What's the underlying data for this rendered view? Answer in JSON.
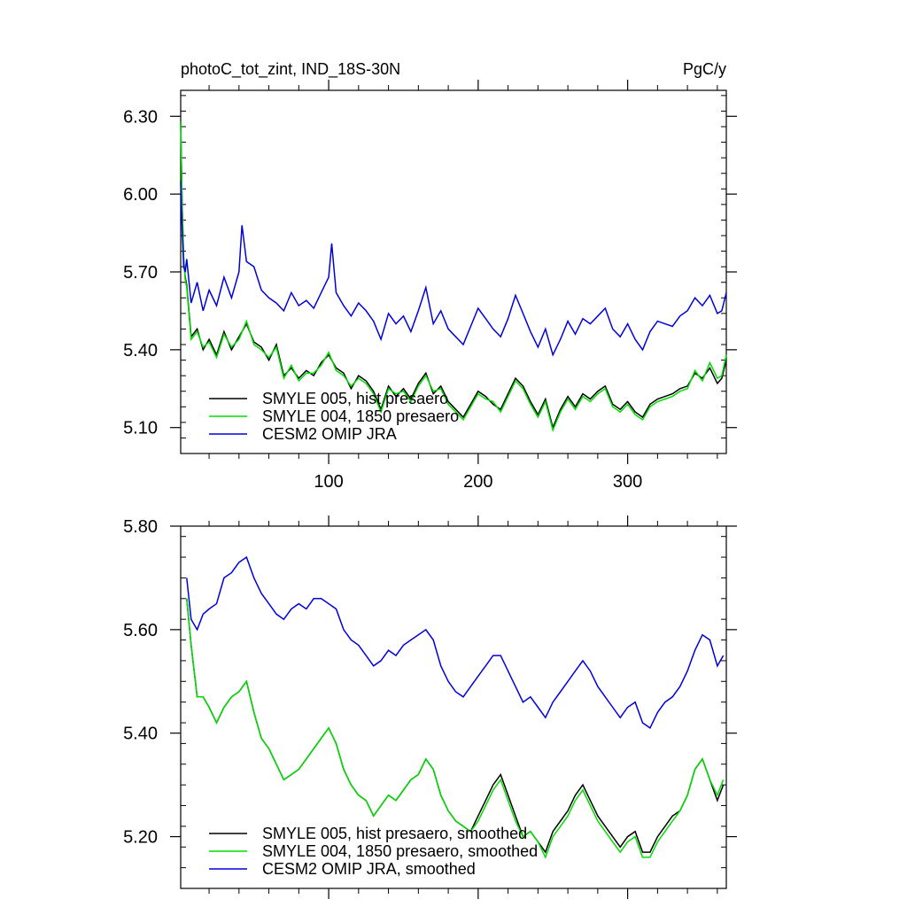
{
  "chart_data": [
    {
      "type": "line",
      "title_left": "photoC_tot_zint, IND_18S-30N",
      "title_right": "PgC/y",
      "xlim": [
        1,
        366
      ],
      "ylim": [
        5.0,
        6.4
      ],
      "yticks": [
        5.1,
        5.4,
        5.7,
        6.0,
        6.3
      ],
      "yticklabels": [
        "5.10",
        "5.40",
        "5.70",
        "6.00",
        "6.30"
      ],
      "xticks": [
        100,
        200,
        300
      ],
      "xticklabels": [
        "100",
        "200",
        "300"
      ],
      "legend_position": "bottom-left",
      "series": [
        {
          "name": "SMYLE 005, hist presaero",
          "color": "#000000",
          "x": [
            1,
            2,
            3,
            4,
            5,
            8,
            12,
            16,
            20,
            25,
            30,
            35,
            40,
            45,
            50,
            55,
            60,
            65,
            70,
            75,
            80,
            85,
            90,
            95,
            100,
            105,
            110,
            115,
            120,
            125,
            130,
            135,
            140,
            145,
            150,
            155,
            160,
            165,
            170,
            175,
            180,
            185,
            190,
            195,
            200,
            205,
            210,
            215,
            220,
            225,
            230,
            235,
            240,
            245,
            250,
            255,
            260,
            265,
            270,
            275,
            280,
            285,
            290,
            295,
            300,
            305,
            310,
            315,
            320,
            325,
            330,
            335,
            340,
            345,
            350,
            355,
            360,
            363,
            366
          ],
          "values": [
            6.28,
            5.95,
            5.75,
            5.68,
            5.65,
            5.45,
            5.48,
            5.4,
            5.44,
            5.38,
            5.47,
            5.4,
            5.45,
            5.5,
            5.43,
            5.41,
            5.36,
            5.42,
            5.3,
            5.33,
            5.29,
            5.32,
            5.3,
            5.35,
            5.38,
            5.33,
            5.31,
            5.25,
            5.3,
            5.28,
            5.24,
            5.17,
            5.26,
            5.22,
            5.25,
            5.21,
            5.27,
            5.31,
            5.23,
            5.26,
            5.2,
            5.17,
            5.14,
            5.19,
            5.24,
            5.22,
            5.19,
            5.17,
            5.23,
            5.29,
            5.26,
            5.2,
            5.15,
            5.21,
            5.1,
            5.17,
            5.22,
            5.18,
            5.23,
            5.21,
            5.24,
            5.26,
            5.19,
            5.17,
            5.2,
            5.16,
            5.14,
            5.19,
            5.21,
            5.22,
            5.23,
            5.25,
            5.26,
            5.31,
            5.29,
            5.33,
            5.27,
            5.29,
            5.36
          ]
        },
        {
          "name": "SMYLE 004, 1850 presaero",
          "color": "#00dd00",
          "x": [
            1,
            2,
            3,
            4,
            5,
            8,
            12,
            16,
            20,
            25,
            30,
            35,
            40,
            45,
            50,
            55,
            60,
            65,
            70,
            75,
            80,
            85,
            90,
            95,
            100,
            105,
            110,
            115,
            120,
            125,
            130,
            135,
            140,
            145,
            150,
            155,
            160,
            165,
            170,
            175,
            180,
            185,
            190,
            195,
            200,
            205,
            210,
            215,
            220,
            225,
            230,
            235,
            240,
            245,
            250,
            255,
            260,
            265,
            270,
            275,
            280,
            285,
            290,
            295,
            300,
            305,
            310,
            315,
            320,
            325,
            330,
            335,
            340,
            345,
            350,
            355,
            360,
            363,
            366
          ],
          "values": [
            6.28,
            5.95,
            5.75,
            5.67,
            5.64,
            5.44,
            5.47,
            5.41,
            5.43,
            5.37,
            5.46,
            5.41,
            5.44,
            5.51,
            5.42,
            5.4,
            5.37,
            5.41,
            5.29,
            5.34,
            5.28,
            5.31,
            5.31,
            5.34,
            5.39,
            5.32,
            5.3,
            5.26,
            5.29,
            5.27,
            5.23,
            5.16,
            5.25,
            5.23,
            5.24,
            5.2,
            5.26,
            5.3,
            5.24,
            5.25,
            5.19,
            5.16,
            5.13,
            5.18,
            5.23,
            5.21,
            5.2,
            5.16,
            5.22,
            5.28,
            5.25,
            5.19,
            5.14,
            5.2,
            5.09,
            5.16,
            5.21,
            5.17,
            5.22,
            5.2,
            5.23,
            5.25,
            5.18,
            5.16,
            5.19,
            5.15,
            5.13,
            5.18,
            5.2,
            5.21,
            5.22,
            5.24,
            5.25,
            5.32,
            5.28,
            5.35,
            5.29,
            5.3,
            5.38
          ]
        },
        {
          "name": "CESM2 OMIP JRA",
          "color": "#0000dd",
          "x": [
            1,
            2,
            3,
            4,
            5,
            8,
            12,
            16,
            20,
            25,
            30,
            35,
            40,
            42,
            45,
            50,
            55,
            60,
            65,
            70,
            75,
            80,
            85,
            90,
            95,
            100,
            102,
            105,
            110,
            115,
            120,
            125,
            130,
            135,
            140,
            145,
            150,
            155,
            160,
            165,
            170,
            175,
            180,
            185,
            190,
            195,
            200,
            205,
            210,
            215,
            220,
            225,
            230,
            235,
            240,
            245,
            250,
            255,
            260,
            265,
            270,
            275,
            280,
            285,
            290,
            295,
            300,
            305,
            310,
            315,
            320,
            325,
            330,
            335,
            340,
            345,
            350,
            355,
            360,
            363,
            366
          ],
          "values": [
            6.05,
            5.85,
            5.72,
            5.7,
            5.75,
            5.58,
            5.66,
            5.55,
            5.63,
            5.57,
            5.68,
            5.6,
            5.7,
            5.88,
            5.74,
            5.72,
            5.63,
            5.6,
            5.58,
            5.55,
            5.62,
            5.57,
            5.59,
            5.56,
            5.62,
            5.68,
            5.81,
            5.62,
            5.57,
            5.53,
            5.58,
            5.55,
            5.51,
            5.44,
            5.54,
            5.5,
            5.53,
            5.47,
            5.55,
            5.64,
            5.5,
            5.55,
            5.48,
            5.45,
            5.42,
            5.49,
            5.56,
            5.52,
            5.48,
            5.45,
            5.52,
            5.61,
            5.54,
            5.47,
            5.41,
            5.48,
            5.38,
            5.44,
            5.51,
            5.46,
            5.52,
            5.5,
            5.53,
            5.56,
            5.48,
            5.45,
            5.5,
            5.44,
            5.4,
            5.47,
            5.51,
            5.5,
            5.49,
            5.53,
            5.55,
            5.6,
            5.57,
            5.61,
            5.54,
            5.55,
            5.62
          ]
        }
      ]
    },
    {
      "type": "line",
      "xlim": [
        1,
        366
      ],
      "ylim": [
        5.1,
        5.8
      ],
      "yticks": [
        5.2,
        5.4,
        5.6,
        5.8
      ],
      "yticklabels": [
        "5.20",
        "5.40",
        "5.60",
        "5.80"
      ],
      "xticks": [
        100,
        200,
        300
      ],
      "xticklabels": [],
      "legend_position": "bottom-left",
      "series": [
        {
          "name": "SMYLE 005, hist presaero, smoothed",
          "color": "#000000",
          "x": [
            5,
            8,
            12,
            16,
            20,
            25,
            30,
            35,
            40,
            45,
            50,
            55,
            60,
            65,
            70,
            75,
            80,
            85,
            90,
            95,
            100,
            105,
            110,
            115,
            120,
            125,
            130,
            135,
            140,
            145,
            150,
            155,
            160,
            165,
            170,
            175,
            180,
            185,
            190,
            195,
            200,
            205,
            210,
            215,
            220,
            225,
            230,
            235,
            240,
            245,
            250,
            255,
            260,
            265,
            270,
            275,
            280,
            285,
            290,
            295,
            300,
            305,
            310,
            315,
            320,
            325,
            330,
            335,
            340,
            345,
            350,
            355,
            360,
            364
          ],
          "values": [
            5.66,
            5.57,
            5.47,
            5.47,
            5.45,
            5.42,
            5.45,
            5.47,
            5.48,
            5.5,
            5.44,
            5.39,
            5.37,
            5.34,
            5.31,
            5.32,
            5.33,
            5.35,
            5.37,
            5.39,
            5.41,
            5.38,
            5.33,
            5.3,
            5.28,
            5.27,
            5.24,
            5.26,
            5.28,
            5.27,
            5.29,
            5.31,
            5.32,
            5.35,
            5.33,
            5.28,
            5.25,
            5.23,
            5.22,
            5.21,
            5.24,
            5.27,
            5.3,
            5.32,
            5.28,
            5.24,
            5.2,
            5.21,
            5.19,
            5.17,
            5.21,
            5.23,
            5.25,
            5.28,
            5.3,
            5.27,
            5.24,
            5.22,
            5.2,
            5.18,
            5.2,
            5.21,
            5.17,
            5.17,
            5.2,
            5.22,
            5.24,
            5.25,
            5.28,
            5.33,
            5.35,
            5.31,
            5.27,
            5.3
          ]
        },
        {
          "name": "SMYLE 004, 1850 presaero, smoothed",
          "color": "#00dd00",
          "x": [
            5,
            8,
            12,
            16,
            20,
            25,
            30,
            35,
            40,
            45,
            50,
            55,
            60,
            65,
            70,
            75,
            80,
            85,
            90,
            95,
            100,
            105,
            110,
            115,
            120,
            125,
            130,
            135,
            140,
            145,
            150,
            155,
            160,
            165,
            170,
            175,
            180,
            185,
            190,
            195,
            200,
            205,
            210,
            215,
            220,
            225,
            230,
            235,
            240,
            245,
            250,
            255,
            260,
            265,
            270,
            275,
            280,
            285,
            290,
            295,
            300,
            305,
            310,
            315,
            320,
            325,
            330,
            335,
            340,
            345,
            350,
            355,
            360,
            364
          ],
          "values": [
            5.66,
            5.57,
            5.47,
            5.47,
            5.45,
            5.42,
            5.45,
            5.47,
            5.48,
            5.5,
            5.44,
            5.39,
            5.37,
            5.34,
            5.31,
            5.32,
            5.33,
            5.35,
            5.37,
            5.39,
            5.41,
            5.38,
            5.33,
            5.3,
            5.28,
            5.27,
            5.24,
            5.26,
            5.28,
            5.27,
            5.29,
            5.31,
            5.32,
            5.35,
            5.33,
            5.28,
            5.25,
            5.23,
            5.22,
            5.21,
            5.23,
            5.26,
            5.29,
            5.31,
            5.27,
            5.23,
            5.2,
            5.21,
            5.19,
            5.16,
            5.2,
            5.22,
            5.24,
            5.27,
            5.29,
            5.26,
            5.23,
            5.21,
            5.19,
            5.17,
            5.19,
            5.2,
            5.16,
            5.16,
            5.19,
            5.21,
            5.23,
            5.25,
            5.28,
            5.33,
            5.35,
            5.31,
            5.28,
            5.31
          ]
        },
        {
          "name": "CESM2 OMIP JRA, smoothed",
          "color": "#0000dd",
          "x": [
            5,
            8,
            12,
            16,
            20,
            25,
            30,
            35,
            40,
            45,
            50,
            55,
            60,
            65,
            70,
            75,
            80,
            85,
            90,
            95,
            100,
            105,
            110,
            115,
            120,
            125,
            130,
            135,
            140,
            145,
            150,
            155,
            160,
            165,
            170,
            175,
            180,
            185,
            190,
            195,
            200,
            205,
            210,
            215,
            220,
            225,
            230,
            235,
            240,
            245,
            250,
            255,
            260,
            265,
            270,
            275,
            280,
            285,
            290,
            295,
            300,
            305,
            310,
            315,
            320,
            325,
            330,
            335,
            340,
            345,
            350,
            355,
            360,
            364
          ],
          "values": [
            5.7,
            5.62,
            5.6,
            5.63,
            5.64,
            5.65,
            5.7,
            5.71,
            5.73,
            5.74,
            5.7,
            5.67,
            5.65,
            5.63,
            5.62,
            5.64,
            5.65,
            5.64,
            5.66,
            5.66,
            5.65,
            5.64,
            5.6,
            5.58,
            5.57,
            5.55,
            5.53,
            5.54,
            5.56,
            5.55,
            5.57,
            5.58,
            5.59,
            5.6,
            5.58,
            5.53,
            5.5,
            5.48,
            5.47,
            5.49,
            5.51,
            5.53,
            5.55,
            5.55,
            5.52,
            5.49,
            5.46,
            5.47,
            5.45,
            5.43,
            5.46,
            5.48,
            5.5,
            5.52,
            5.54,
            5.52,
            5.49,
            5.47,
            5.45,
            5.43,
            5.45,
            5.46,
            5.42,
            5.41,
            5.44,
            5.46,
            5.47,
            5.49,
            5.52,
            5.56,
            5.59,
            5.58,
            5.53,
            5.55
          ]
        }
      ]
    }
  ]
}
